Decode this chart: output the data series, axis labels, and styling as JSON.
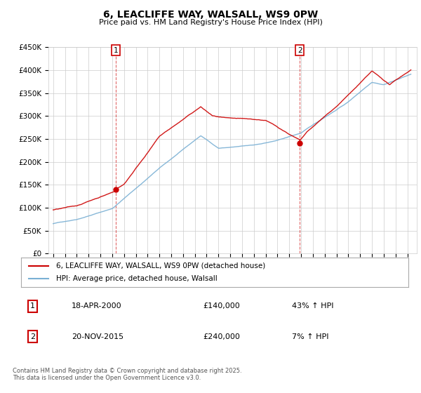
{
  "title": "6, LEACLIFFE WAY, WALSALL, WS9 0PW",
  "subtitle": "Price paid vs. HM Land Registry's House Price Index (HPI)",
  "ylabel_ticks": [
    "£0",
    "£50K",
    "£100K",
    "£150K",
    "£200K",
    "£250K",
    "£300K",
    "£350K",
    "£400K",
    "£450K"
  ],
  "ytick_values": [
    0,
    50000,
    100000,
    150000,
    200000,
    250000,
    300000,
    350000,
    400000,
    450000
  ],
  "ylim": [
    0,
    450000
  ],
  "xlim_start": 1994.6,
  "xlim_end": 2025.8,
  "red_color": "#cc0000",
  "blue_color": "#7ab0d4",
  "vline_color": "#cc0000",
  "marker1_year": 2000.29,
  "marker2_year": 2015.89,
  "marker1_price": 140000,
  "marker2_price": 240000,
  "legend1": "6, LEACLIFFE WAY, WALSALL, WS9 0PW (detached house)",
  "legend2": "HPI: Average price, detached house, Walsall",
  "annotation1_label": "1",
  "annotation1_date": "18-APR-2000",
  "annotation1_price": "£140,000",
  "annotation1_hpi": "43% ↑ HPI",
  "annotation2_label": "2",
  "annotation2_date": "20-NOV-2015",
  "annotation2_price": "£240,000",
  "annotation2_hpi": "7% ↑ HPI",
  "footer": "Contains HM Land Registry data © Crown copyright and database right 2025.\nThis data is licensed under the Open Government Licence v3.0.",
  "background_color": "#ffffff",
  "grid_color": "#cccccc",
  "title_fontsize": 10,
  "subtitle_fontsize": 8
}
